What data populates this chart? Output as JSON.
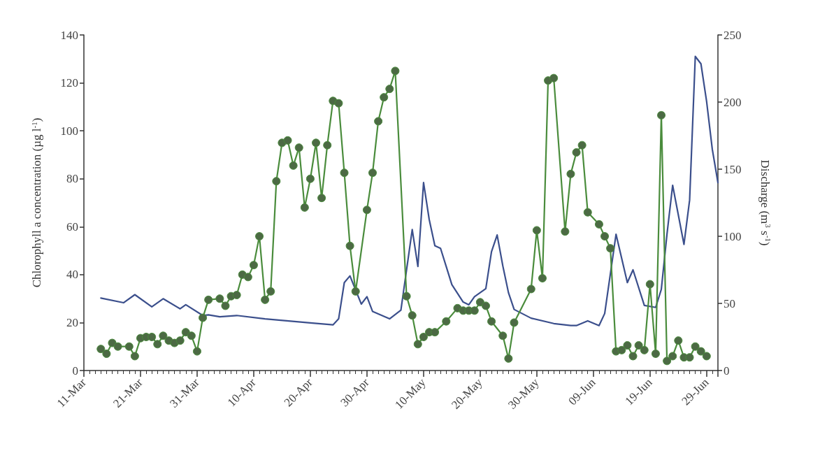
{
  "chart_data": {
    "type": "line",
    "ylabel": "Chlorophyll a concentration (µg l$^{-1}$)",
    "y2label": "Discharge (m$^{3}$ s$^{-1}$)",
    "xlim": [
      "--03-11",
      "--07-01"
    ],
    "xticks": [
      {
        "value": "--03-11",
        "label": "11-Mar"
      },
      {
        "value": "--03-21",
        "label": "21-Mar"
      },
      {
        "value": "--03-31",
        "label": "31-Mar"
      },
      {
        "value": "--04-10",
        "label": "10-Apr"
      },
      {
        "value": "--04-20",
        "label": "20-Apr"
      },
      {
        "value": "--04-30",
        "label": "30-Apr"
      },
      {
        "value": "--05-10",
        "label": "10-May"
      },
      {
        "value": "--05-20",
        "label": "20-May"
      },
      {
        "value": "--05-30",
        "label": "30-May"
      },
      {
        "value": "--06-09",
        "label": "09-Jun"
      },
      {
        "value": "--06-19",
        "label": "19-Jun"
      },
      {
        "value": "--06-29",
        "label": "29-Jun"
      }
    ],
    "ylim": [
      0,
      140
    ],
    "yticks": [
      0,
      20,
      40,
      60,
      80,
      100,
      120,
      140
    ],
    "y2lim": [
      0,
      250
    ],
    "y2ticks": [
      0,
      50,
      100,
      150,
      200,
      250
    ],
    "grid": false,
    "series": [
      {
        "color": "#4a8c3c",
        "marker": "circle",
        "x": [
          "--03-14",
          "--03-15",
          "--03-16",
          "--03-17",
          "--03-19",
          "--03-20",
          "--03-21",
          "--03-22",
          "--03-23",
          "--03-24",
          "--03-25",
          "--03-26",
          "--03-27",
          "--03-28",
          "--03-29",
          "--03-30",
          "--03-31",
          "--04-01",
          "--04-02",
          "--04-04",
          "--04-05",
          "--04-06",
          "--04-07",
          "--04-08",
          "--04-09",
          "--04-10",
          "--04-11",
          "--04-12",
          "--04-13",
          "--04-14",
          "--04-15",
          "--04-16",
          "--04-17",
          "--04-18",
          "--04-19",
          "--04-20",
          "--04-21",
          "--04-22",
          "--04-23",
          "--04-24",
          "--04-25",
          "--04-26",
          "--04-27",
          "--04-28",
          "--04-30",
          "--05-01",
          "--05-02",
          "--05-03",
          "--05-04",
          "--05-05",
          "--05-07",
          "--05-08",
          "--05-09",
          "--05-10",
          "--05-11",
          "--05-12",
          "--05-14",
          "--05-16",
          "--05-17",
          "--05-18",
          "--05-19",
          "--05-20",
          "--05-21",
          "--05-22",
          "--05-24",
          "--05-25",
          "--05-26",
          "--05-29",
          "--05-30",
          "--05-31",
          "--06-01",
          "--06-02",
          "--06-04",
          "--06-05",
          "--06-06",
          "--06-07",
          "--06-08",
          "--06-10",
          "--06-11",
          "--06-12",
          "--06-13",
          "--06-14",
          "--06-15",
          "--06-16",
          "--06-17",
          "--06-18",
          "--06-19",
          "--06-20",
          "--06-21",
          "--06-22",
          "--06-23",
          "--06-24",
          "--06-25",
          "--06-26",
          "--06-27",
          "--06-28",
          "--06-29"
        ],
        "values": [
          9,
          7,
          11.5,
          10,
          10,
          6,
          13.5,
          14,
          14,
          11,
          14.5,
          12.5,
          11.5,
          12.5,
          16,
          14.5,
          8,
          22,
          29.5,
          30,
          27,
          31,
          31.5,
          40,
          39,
          44,
          56,
          29.5,
          33,
          79,
          95,
          96,
          85.5,
          93,
          68,
          80,
          95,
          72,
          94,
          112.5,
          111.5,
          82.5,
          52,
          33,
          67,
          82.5,
          104,
          114,
          117.5,
          125,
          31,
          23,
          11,
          14,
          16,
          16,
          20.5,
          26,
          25,
          25,
          25,
          28.5,
          27,
          20.5,
          14.5,
          5,
          20,
          34,
          58.5,
          38.5,
          121,
          122,
          58,
          82,
          91,
          94,
          66,
          61,
          56,
          51,
          8,
          8.5,
          10.5,
          6,
          10.5,
          8.5,
          36,
          7,
          106.5,
          4,
          6,
          12.5,
          5.5,
          5.5,
          10,
          8,
          6
        ]
      },
      {
        "color": "#3b4f8c",
        "marker": "none",
        "axis": "y2",
        "x": [
          "--03-14",
          "--03-18",
          "--03-20",
          "--03-23",
          "--03-25",
          "--03-28",
          "--03-29",
          "--04-01",
          "--04-02",
          "--04-04",
          "--04-07",
          "--04-12",
          "--04-20",
          "--04-24",
          "--04-25",
          "--04-26",
          "--04-27",
          "--04-29",
          "--04-30",
          "--05-01",
          "--05-04",
          "--05-06",
          "--05-08",
          "--05-09",
          "--05-10",
          "--05-11",
          "--05-12",
          "--05-13",
          "--05-14",
          "--05-15",
          "--05-17",
          "--05-18",
          "--05-19",
          "--05-21",
          "--05-22",
          "--05-23",
          "--05-24",
          "--05-25",
          "--05-26",
          "--05-29",
          "--06-02",
          "--06-05",
          "--06-06",
          "--06-08",
          "--06-10",
          "--06-11",
          "--06-13",
          "--06-15",
          "--06-16",
          "--06-18",
          "--06-20",
          "--06-21",
          "--06-22",
          "--06-23",
          "--06-25",
          "--06-26",
          "--06-27",
          "--06-28",
          "--06-29",
          "--06-30",
          "--07-01"
        ],
        "values": [
          54,
          50.5,
          56.5,
          47.5,
          53.5,
          46,
          49,
          41,
          41.5,
          40,
          41,
          38.5,
          35.5,
          34,
          38.5,
          65.5,
          70.5,
          49.5,
          55,
          44,
          38.5,
          45,
          105,
          77.5,
          140,
          112.5,
          93,
          91,
          77.5,
          64,
          51,
          49,
          55,
          61,
          88.5,
          101,
          78,
          58,
          45.5,
          39,
          35,
          33.5,
          33.5,
          37,
          33.5,
          42.5,
          101.5,
          65.5,
          75,
          48.5,
          47,
          60.5,
          101.5,
          138,
          94,
          127,
          234,
          228.5,
          200.5,
          165,
          140
        ]
      }
    ]
  }
}
